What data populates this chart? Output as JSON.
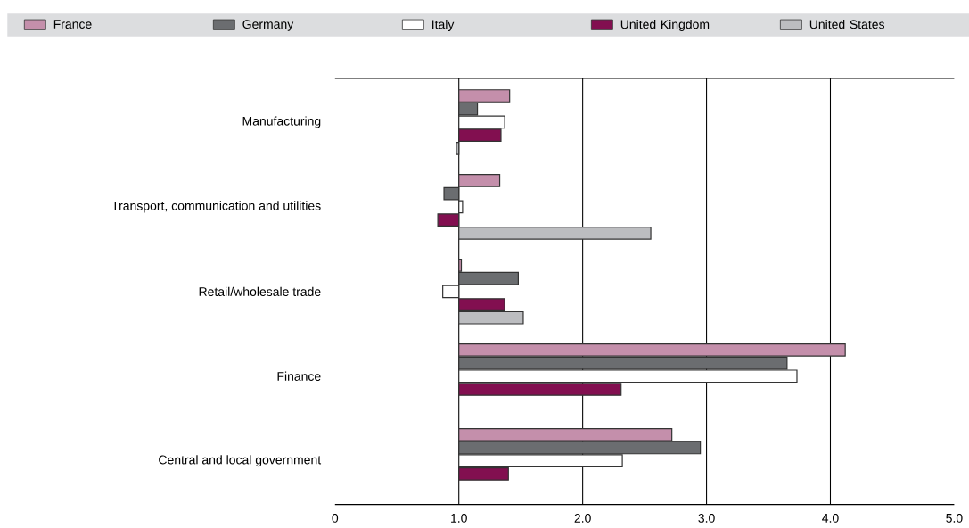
{
  "chart_data": {
    "type": "bar",
    "orientation": "horizontal",
    "categories": [
      "Manufacturing",
      "Transport, communication and utilities",
      "Retail/wholesale trade",
      "Finance",
      "Central and local government"
    ],
    "series": [
      {
        "name": "France",
        "color": "#c48fab",
        "base": [
          1,
          1,
          1,
          1,
          1
        ],
        "values": [
          0.41,
          0.33,
          0.02,
          3.12,
          1.72
        ]
      },
      {
        "name": "Germany",
        "color": "#6b6d70",
        "base": [
          1,
          1,
          1,
          1,
          1
        ],
        "values": [
          0.15,
          -0.12,
          0.48,
          2.65,
          1.95
        ]
      },
      {
        "name": "Italy",
        "color": "#ffffff",
        "base": [
          1,
          1,
          1,
          1,
          1
        ],
        "values": [
          0.37,
          0.03,
          -0.13,
          2.73,
          1.32
        ]
      },
      {
        "name": "United Kingdom",
        "color": "#820f50",
        "base": [
          1,
          1,
          1,
          1,
          1
        ],
        "values": [
          0.34,
          -0.17,
          0.37,
          1.31,
          0.4
        ]
      },
      {
        "name": "United States",
        "color": "#bcbdc0",
        "base": [
          1,
          1,
          1,
          null,
          null
        ],
        "values": [
          -0.02,
          1.55,
          0.52,
          null,
          null
        ]
      }
    ],
    "xlim": [
      0,
      5
    ],
    "xticks": [
      0,
      {
        "value": 1,
        "label": "1.0"
      },
      {
        "value": 2,
        "label": "2.0"
      },
      {
        "value": 3,
        "label": "3.0"
      },
      {
        "value": 4,
        "label": "4.0"
      },
      {
        "value": 5,
        "label": "5.0"
      }
    ],
    "grid": "x",
    "legend": "top"
  }
}
